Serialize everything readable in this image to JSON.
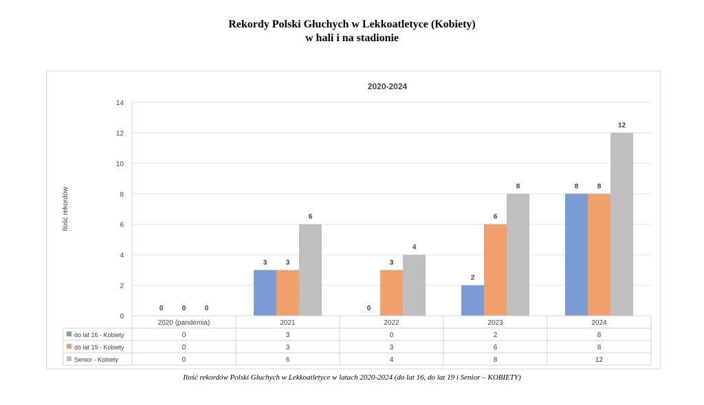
{
  "page": {
    "title_line1": "Rekordy Polski Głuchych w Lekkoatletyce (Kobiety)",
    "title_line2": "w hali i na stadionie",
    "caption": "Ilość rekordów Polski Głuchych w Lekkoatletyce w latach 2020-2024 (do lat 16, do lat 19 i Senior – KOBIETY)"
  },
  "chart_data": {
    "type": "bar",
    "title": "2020-2024",
    "ylabel": "Ilość  rekordów",
    "xlabel": "",
    "ylim": [
      0,
      14
    ],
    "yticks": [
      0,
      2,
      4,
      6,
      8,
      10,
      12,
      14
    ],
    "grid": true,
    "legend": "data-table",
    "categories": [
      "2020 (pandemia)",
      "2021",
      "2022",
      "2023",
      "2024"
    ],
    "series": [
      {
        "name": "do lat 16 - Kobiety",
        "color": "#7a9bd4",
        "values": [
          0,
          3,
          0,
          2,
          8
        ]
      },
      {
        "name": "do lat 19 - Kobiety",
        "color": "#f0a06a",
        "values": [
          0,
          3,
          3,
          6,
          8
        ]
      },
      {
        "name": "Senior - Kobiety",
        "color": "#bfbfbf",
        "values": [
          0,
          6,
          4,
          8,
          12
        ]
      }
    ]
  }
}
